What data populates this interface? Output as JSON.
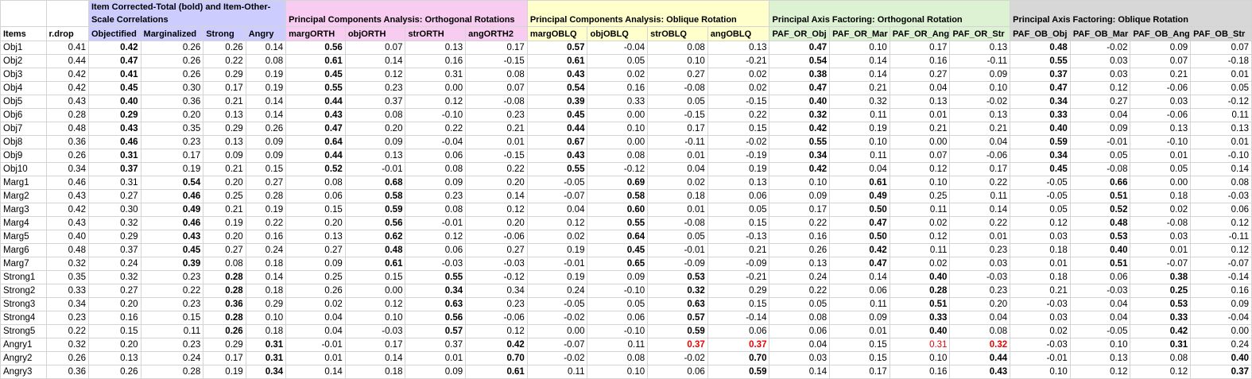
{
  "group_headers": [
    "Item Corrected-Total (bold) and Item-Other-Scale Correlations",
    "Principal Components Analysis: Orthogonal Rotations",
    "Principal Components Analysis: Oblique Rotation",
    "Principal Axis Factoring: Orthogonal Rotation",
    "Principal Axis Factoring: Oblique Rotation"
  ],
  "column_headers": [
    "Items",
    "r.drop",
    "Objectified",
    "Marginalized",
    "Strong",
    "Angry",
    "margORTH",
    "objORTH",
    "strORTH",
    "angORTH2",
    "margOBLQ",
    "objOBLQ",
    "strOBLQ",
    "angOBLQ",
    "PAF_OR_Obj",
    "PAF_OR_Mar",
    "PAF_OR_Ang",
    "PAF_OR_Str",
    "PAF_OB_Obj",
    "PAF_OB_Mar",
    "PAF_OB_Ang",
    "PAF_OB_Str"
  ],
  "rows": [
    [
      "Obj1",
      "0.41",
      "0.42",
      "0.26",
      "0.26",
      "0.14",
      "0.56",
      "0.07",
      "0.13",
      "0.17",
      "0.57",
      "-0.04",
      "0.08",
      "0.13",
      "0.47",
      "0.10",
      "0.17",
      "0.13",
      "0.48",
      "-0.02",
      "0.09",
      "0.07"
    ],
    [
      "Obj2",
      "0.44",
      "0.47",
      "0.26",
      "0.22",
      "0.08",
      "0.61",
      "0.14",
      "0.16",
      "-0.15",
      "0.61",
      "0.05",
      "0.10",
      "-0.21",
      "0.54",
      "0.14",
      "0.16",
      "-0.11",
      "0.55",
      "0.03",
      "0.07",
      "-0.18"
    ],
    [
      "Obj3",
      "0.42",
      "0.41",
      "0.26",
      "0.29",
      "0.19",
      "0.45",
      "0.12",
      "0.31",
      "0.08",
      "0.43",
      "0.02",
      "0.27",
      "0.02",
      "0.38",
      "0.14",
      "0.27",
      "0.09",
      "0.37",
      "0.03",
      "0.21",
      "0.01"
    ],
    [
      "Obj4",
      "0.42",
      "0.45",
      "0.30",
      "0.17",
      "0.19",
      "0.55",
      "0.23",
      "0.00",
      "0.07",
      "0.54",
      "0.16",
      "-0.08",
      "0.02",
      "0.47",
      "0.21",
      "0.04",
      "0.10",
      "0.47",
      "0.12",
      "-0.06",
      "0.05"
    ],
    [
      "Obj5",
      "0.43",
      "0.40",
      "0.36",
      "0.21",
      "0.14",
      "0.44",
      "0.37",
      "0.12",
      "-0.08",
      "0.39",
      "0.33",
      "0.05",
      "-0.15",
      "0.40",
      "0.32",
      "0.13",
      "-0.02",
      "0.34",
      "0.27",
      "0.03",
      "-0.12"
    ],
    [
      "Obj6",
      "0.28",
      "0.29",
      "0.20",
      "0.13",
      "0.14",
      "0.43",
      "0.08",
      "-0.10",
      "0.23",
      "0.45",
      "0.00",
      "-0.15",
      "0.22",
      "0.32",
      "0.11",
      "0.01",
      "0.13",
      "0.33",
      "0.04",
      "-0.06",
      "0.11"
    ],
    [
      "Obj7",
      "0.48",
      "0.43",
      "0.35",
      "0.29",
      "0.26",
      "0.47",
      "0.20",
      "0.22",
      "0.21",
      "0.44",
      "0.10",
      "0.17",
      "0.15",
      "0.42",
      "0.19",
      "0.21",
      "0.21",
      "0.40",
      "0.09",
      "0.13",
      "0.13"
    ],
    [
      "Obj8",
      "0.36",
      "0.46",
      "0.23",
      "0.13",
      "0.09",
      "0.64",
      "0.09",
      "-0.04",
      "0.01",
      "0.67",
      "0.00",
      "-0.11",
      "-0.02",
      "0.55",
      "0.10",
      "0.00",
      "0.04",
      "0.59",
      "-0.01",
      "-0.10",
      "0.01"
    ],
    [
      "Obj9",
      "0.26",
      "0.31",
      "0.17",
      "0.09",
      "0.09",
      "0.44",
      "0.13",
      "0.06",
      "-0.15",
      "0.43",
      "0.08",
      "0.01",
      "-0.19",
      "0.34",
      "0.11",
      "0.07",
      "-0.06",
      "0.34",
      "0.05",
      "0.01",
      "-0.10"
    ],
    [
      "Obj10",
      "0.34",
      "0.37",
      "0.19",
      "0.21",
      "0.15",
      "0.52",
      "-0.01",
      "0.08",
      "0.22",
      "0.55",
      "-0.12",
      "0.04",
      "0.19",
      "0.42",
      "0.04",
      "0.12",
      "0.17",
      "0.45",
      "-0.08",
      "0.05",
      "0.14"
    ],
    [
      "Marg1",
      "0.46",
      "0.31",
      "0.54",
      "0.20",
      "0.27",
      "0.08",
      "0.68",
      "0.09",
      "0.20",
      "-0.05",
      "0.69",
      "0.02",
      "0.13",
      "0.10",
      "0.61",
      "0.10",
      "0.22",
      "-0.05",
      "0.66",
      "0.00",
      "0.08"
    ],
    [
      "Marg2",
      "0.43",
      "0.27",
      "0.46",
      "0.25",
      "0.28",
      "0.06",
      "0.58",
      "0.23",
      "0.14",
      "-0.07",
      "0.58",
      "0.18",
      "0.06",
      "0.09",
      "0.49",
      "0.25",
      "0.11",
      "-0.05",
      "0.51",
      "0.18",
      "-0.03"
    ],
    [
      "Marg3",
      "0.42",
      "0.30",
      "0.49",
      "0.21",
      "0.19",
      "0.15",
      "0.59",
      "0.08",
      "0.12",
      "0.04",
      "0.60",
      "0.01",
      "0.05",
      "0.17",
      "0.50",
      "0.11",
      "0.14",
      "0.05",
      "0.52",
      "0.02",
      "0.06"
    ],
    [
      "Marg4",
      "0.43",
      "0.32",
      "0.46",
      "0.19",
      "0.22",
      "0.20",
      "0.56",
      "-0.01",
      "0.20",
      "0.12",
      "0.55",
      "-0.08",
      "0.15",
      "0.22",
      "0.47",
      "0.02",
      "0.22",
      "0.12",
      "0.48",
      "-0.08",
      "0.12"
    ],
    [
      "Marg5",
      "0.40",
      "0.29",
      "0.43",
      "0.20",
      "0.16",
      "0.13",
      "0.62",
      "0.12",
      "-0.06",
      "0.02",
      "0.64",
      "0.05",
      "-0.13",
      "0.16",
      "0.50",
      "0.12",
      "0.01",
      "0.03",
      "0.53",
      "0.03",
      "-0.11"
    ],
    [
      "Marg6",
      "0.48",
      "0.37",
      "0.45",
      "0.27",
      "0.24",
      "0.27",
      "0.48",
      "0.06",
      "0.27",
      "0.19",
      "0.45",
      "-0.01",
      "0.21",
      "0.26",
      "0.42",
      "0.11",
      "0.23",
      "0.18",
      "0.40",
      "0.01",
      "0.12"
    ],
    [
      "Marg7",
      "0.32",
      "0.24",
      "0.39",
      "0.08",
      "0.18",
      "0.09",
      "0.61",
      "-0.03",
      "-0.03",
      "-0.01",
      "0.65",
      "-0.09",
      "-0.09",
      "0.13",
      "0.47",
      "0.02",
      "0.03",
      "0.01",
      "0.51",
      "-0.07",
      "-0.07"
    ],
    [
      "Strong1",
      "0.35",
      "0.32",
      "0.23",
      "0.28",
      "0.14",
      "0.25",
      "0.15",
      "0.55",
      "-0.12",
      "0.19",
      "0.09",
      "0.53",
      "-0.21",
      "0.24",
      "0.14",
      "0.40",
      "-0.03",
      "0.18",
      "0.06",
      "0.38",
      "-0.14"
    ],
    [
      "Strong2",
      "0.33",
      "0.27",
      "0.22",
      "0.28",
      "0.18",
      "0.26",
      "0.00",
      "0.34",
      "0.34",
      "0.24",
      "-0.10",
      "0.32",
      "0.29",
      "0.22",
      "0.06",
      "0.28",
      "0.23",
      "0.21",
      "-0.03",
      "0.25",
      "0.16"
    ],
    [
      "Strong3",
      "0.34",
      "0.20",
      "0.23",
      "0.36",
      "0.29",
      "0.02",
      "0.12",
      "0.63",
      "0.23",
      "-0.05",
      "0.05",
      "0.63",
      "0.15",
      "0.05",
      "0.11",
      "0.51",
      "0.20",
      "-0.03",
      "0.04",
      "0.53",
      "0.09"
    ],
    [
      "Strong4",
      "0.23",
      "0.16",
      "0.15",
      "0.28",
      "0.10",
      "0.04",
      "0.10",
      "0.56",
      "-0.06",
      "-0.02",
      "0.06",
      "0.57",
      "-0.14",
      "0.08",
      "0.09",
      "0.33",
      "0.04",
      "0.03",
      "0.04",
      "0.33",
      "-0.04"
    ],
    [
      "Strong5",
      "0.22",
      "0.15",
      "0.11",
      "0.26",
      "0.18",
      "0.04",
      "-0.03",
      "0.57",
      "0.12",
      "0.00",
      "-0.10",
      "0.59",
      "0.06",
      "0.06",
      "0.01",
      "0.40",
      "0.08",
      "0.02",
      "-0.05",
      "0.42",
      "0.00"
    ],
    [
      "Angry1",
      "0.32",
      "0.20",
      "0.23",
      "0.29",
      "0.31",
      "-0.01",
      "0.17",
      "0.37",
      "0.42",
      "-0.07",
      "0.11",
      "0.37",
      "0.37",
      "0.04",
      "0.15",
      "0.31",
      "0.32",
      "-0.03",
      "0.10",
      "0.31",
      "0.24"
    ],
    [
      "Angry2",
      "0.26",
      "0.13",
      "0.24",
      "0.17",
      "0.31",
      "0.01",
      "0.14",
      "0.01",
      "0.70",
      "-0.02",
      "0.08",
      "-0.02",
      "0.70",
      "0.03",
      "0.15",
      "0.10",
      "0.44",
      "-0.01",
      "0.13",
      "0.08",
      "0.40"
    ],
    [
      "Angry3",
      "0.36",
      "0.26",
      "0.28",
      "0.19",
      "0.34",
      "0.14",
      "0.18",
      "0.09",
      "0.61",
      "0.11",
      "0.10",
      "0.06",
      "0.59",
      "0.14",
      "0.17",
      "0.16",
      "0.43",
      "0.10",
      "0.12",
      "0.12",
      "0.37"
    ]
  ],
  "styles": {
    "group_colors": {
      "A": "#ccccff",
      "B": "#f8ccf0",
      "C": "#ffffcc",
      "D": "#dcf2d2",
      "E": "#d7d7d7"
    },
    "red_text_color": "#ee0000",
    "bold": {
      "Obj1": [
        2,
        6,
        10,
        14,
        18
      ],
      "Obj2": [
        2,
        6,
        10,
        14,
        18
      ],
      "Obj3": [
        2,
        6,
        10,
        14,
        18
      ],
      "Obj4": [
        2,
        6,
        10,
        14,
        18
      ],
      "Obj5": [
        2,
        6,
        10,
        14,
        18
      ],
      "Obj6": [
        2,
        6,
        10,
        14,
        18
      ],
      "Obj7": [
        2,
        6,
        10,
        14,
        18
      ],
      "Obj8": [
        2,
        6,
        10,
        14,
        18
      ],
      "Obj9": [
        2,
        6,
        10,
        14,
        18
      ],
      "Obj10": [
        2,
        6,
        10,
        14,
        18
      ],
      "Marg1": [
        3,
        7,
        11,
        15,
        19
      ],
      "Marg2": [
        3,
        7,
        11,
        15,
        19
      ],
      "Marg3": [
        3,
        7,
        11,
        15,
        19
      ],
      "Marg4": [
        3,
        7,
        11,
        15,
        19
      ],
      "Marg5": [
        3,
        7,
        11,
        15,
        19
      ],
      "Marg6": [
        3,
        7,
        11,
        15,
        19
      ],
      "Marg7": [
        3,
        7,
        11,
        15,
        19
      ],
      "Strong1": [
        4,
        8,
        12,
        16,
        20
      ],
      "Strong2": [
        4,
        8,
        12,
        16,
        20
      ],
      "Strong3": [
        4,
        8,
        12,
        16,
        20
      ],
      "Strong4": [
        4,
        8,
        12,
        16,
        20
      ],
      "Strong5": [
        4,
        8,
        12,
        16,
        20
      ],
      "Angry1": [
        5,
        9,
        12,
        13,
        17,
        20
      ],
      "Angry2": [
        5,
        9,
        13,
        17,
        21
      ],
      "Angry3": [
        5,
        9,
        13,
        17,
        21
      ]
    },
    "red": {
      "Angry1": [
        12,
        13,
        16,
        17
      ]
    }
  }
}
